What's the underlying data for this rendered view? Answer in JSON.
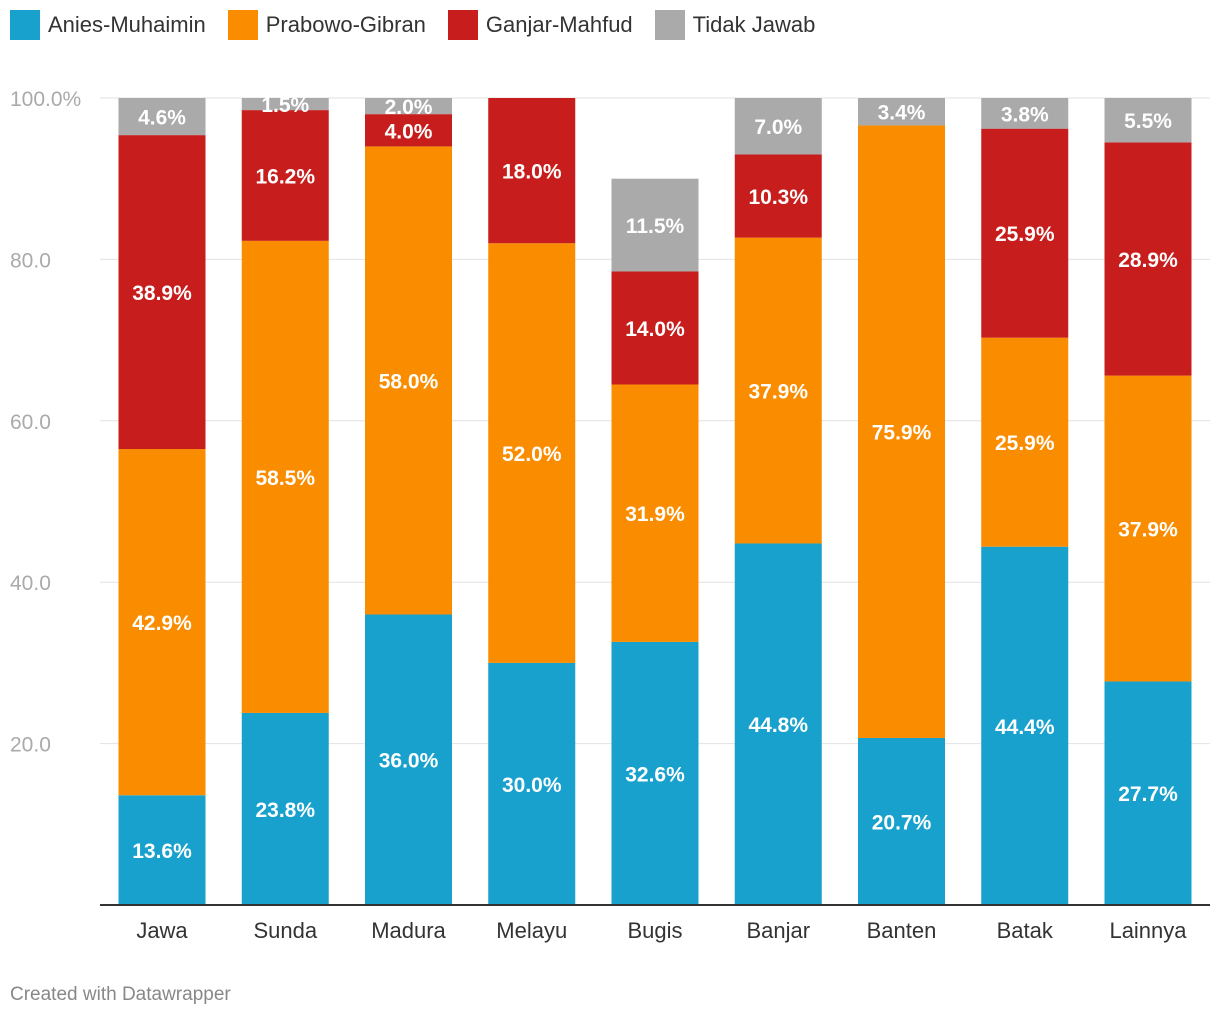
{
  "chart_data": {
    "type": "bar",
    "stacked": true,
    "categories": [
      "Jawa",
      "Sunda",
      "Madura",
      "Melayu",
      "Bugis",
      "Banjar",
      "Banten",
      "Batak",
      "Lainnya"
    ],
    "series": [
      {
        "name": "Anies-Muhaimin",
        "color": "#18a1cd",
        "values": [
          13.6,
          23.8,
          36.0,
          30.0,
          32.6,
          44.8,
          20.7,
          44.4,
          27.7
        ],
        "labels": [
          "13.6%",
          "23.8%",
          "36.0%",
          "30.0%",
          "32.6%",
          "44.8%",
          "20.7%",
          "44.4%",
          "27.7%"
        ]
      },
      {
        "name": "Prabowo-Gibran",
        "color": "#fa8c00",
        "values": [
          42.9,
          58.5,
          58.0,
          52.0,
          31.9,
          37.9,
          75.9,
          25.9,
          37.9
        ],
        "labels": [
          "42.9%",
          "58.5%",
          "58.0%",
          "52.0%",
          "31.9%",
          "37.9%",
          "75.9%",
          "25.9%",
          "37.9%"
        ]
      },
      {
        "name": "Ganjar-Mahfud",
        "color": "#c71e1d",
        "values": [
          38.9,
          16.2,
          4.0,
          18.0,
          14.0,
          10.3,
          null,
          25.9,
          28.9
        ],
        "labels": [
          "38.9%",
          "16.2%",
          "4.0%",
          "18.0%",
          "14.0%",
          "10.3%",
          null,
          "25.9%",
          "28.9%"
        ]
      },
      {
        "name": "Tidak Jawab",
        "color": "#aaaaaa",
        "values": [
          4.6,
          1.5,
          2.0,
          null,
          11.5,
          7.0,
          3.4,
          3.8,
          5.5
        ],
        "labels": [
          "4.6%",
          "1.5%",
          "2.0%",
          null,
          "11.5%",
          "7.0%",
          "3.4%",
          "3.8%",
          "5.5%"
        ]
      }
    ],
    "ylim": [
      0,
      100
    ],
    "y_ticks": [
      20,
      40,
      60,
      80,
      100
    ],
    "y_tick_labels": [
      "20.0",
      "40.0",
      "60.0",
      "80.0",
      "100.0%"
    ],
    "grid": true,
    "legend_position": "top-left",
    "xlabel": "",
    "ylabel": ""
  },
  "credit": "Created with Datawrapper"
}
